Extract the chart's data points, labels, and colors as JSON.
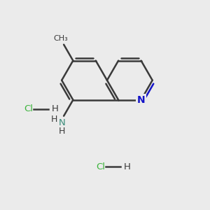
{
  "bg_color": "#ebebeb",
  "bond_color": "#3a3a3a",
  "n_color": "#1414c8",
  "cl_color": "#3cb43c",
  "nh_color": "#3a8c7a",
  "lw": 1.8,
  "ring_r": 1.1,
  "pcx": 6.2,
  "pcy": 6.2,
  "hcl1": [
    1.5,
    4.8
  ],
  "hcl2": [
    5.0,
    2.0
  ]
}
